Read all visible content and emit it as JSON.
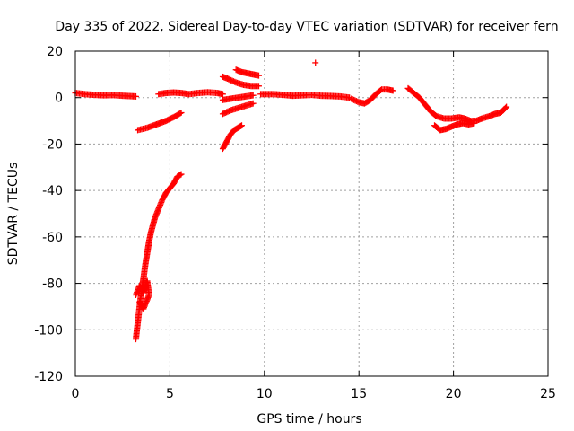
{
  "chart_data": {
    "type": "scatter",
    "title": "Day 335 of 2022, Sidereal Day-to-day VTEC variation (SDTVAR) for receiver fern",
    "xlabel": "GPS time / hours",
    "ylabel": "SDTVAR / TECUs",
    "xlim": [
      0,
      25
    ],
    "ylim": [
      -120,
      20
    ],
    "x_ticks": [
      0,
      5,
      10,
      15,
      20,
      25
    ],
    "y_ticks": [
      -120,
      -100,
      -80,
      -60,
      -40,
      -20,
      0,
      20
    ],
    "grid": true,
    "marker": "+",
    "color": "#ff0000",
    "series": [
      {
        "segments": [
          [
            [
              0.0,
              2
            ],
            [
              0.5,
              1.5
            ],
            [
              1.0,
              1.2
            ],
            [
              1.5,
              1.0
            ],
            [
              2.0,
              1.1
            ],
            [
              2.5,
              0.8
            ],
            [
              3.0,
              0.6
            ],
            [
              3.2,
              0.5
            ]
          ],
          [
            [
              3.3,
              -14
            ],
            [
              3.8,
              -13
            ],
            [
              4.3,
              -11.5
            ],
            [
              4.8,
              -10
            ],
            [
              5.3,
              -8
            ],
            [
              5.6,
              -6.5
            ]
          ],
          [
            [
              3.2,
              -104
            ],
            [
              3.3,
              -97
            ],
            [
              3.4,
              -90
            ],
            [
              3.5,
              -83
            ],
            [
              3.6,
              -78
            ],
            [
              3.7,
              -72
            ],
            [
              3.8,
              -67
            ],
            [
              3.9,
              -62
            ],
            [
              4.0,
              -58
            ],
            [
              4.2,
              -52
            ],
            [
              4.4,
              -48
            ],
            [
              4.6,
              -44
            ],
            [
              4.8,
              -41
            ],
            [
              5.0,
              -39
            ],
            [
              5.2,
              -37
            ],
            [
              5.4,
              -34
            ],
            [
              5.6,
              -33
            ]
          ],
          [
            [
              3.2,
              -85
            ],
            [
              3.4,
              -81
            ],
            [
              3.6,
              -84
            ],
            [
              3.8,
              -79
            ],
            [
              3.9,
              -85
            ],
            [
              3.6,
              -91
            ],
            [
              3.4,
              -88
            ]
          ],
          [
            [
              4.4,
              1.5
            ],
            [
              4.8,
              2.0
            ],
            [
              5.2,
              2.2
            ],
            [
              5.6,
              2.0
            ],
            [
              6.0,
              1.5
            ],
            [
              6.5,
              2.0
            ],
            [
              7.0,
              2.3
            ],
            [
              7.5,
              2.0
            ],
            [
              7.8,
              1.5
            ]
          ],
          [
            [
              7.8,
              9
            ],
            [
              8.1,
              8
            ],
            [
              8.5,
              6.5
            ],
            [
              8.9,
              5.5
            ],
            [
              9.3,
              5.0
            ],
            [
              9.7,
              5.0
            ]
          ],
          [
            [
              8.5,
              12
            ],
            [
              8.8,
              11
            ],
            [
              9.1,
              10.5
            ],
            [
              9.4,
              10
            ],
            [
              9.7,
              9.5
            ]
          ],
          [
            [
              7.8,
              -1
            ],
            [
              8.2,
              -0.5
            ],
            [
              8.6,
              0
            ],
            [
              9.0,
              0.5
            ],
            [
              9.4,
              1.0
            ]
          ],
          [
            [
              7.8,
              -7
            ],
            [
              8.2,
              -5.5
            ],
            [
              8.6,
              -4.5
            ],
            [
              9.0,
              -3.5
            ],
            [
              9.4,
              -2.5
            ]
          ],
          [
            [
              7.8,
              -22
            ],
            [
              8.0,
              -19
            ],
            [
              8.2,
              -16
            ],
            [
              8.4,
              -14
            ],
            [
              8.6,
              -13
            ],
            [
              8.8,
              -12
            ]
          ],
          [
            [
              9.8,
              1.5
            ],
            [
              10.5,
              1.5
            ],
            [
              11.0,
              1.2
            ],
            [
              11.5,
              0.8
            ],
            [
              12.0,
              1.0
            ],
            [
              12.5,
              1.2
            ],
            [
              13.0,
              0.8
            ],
            [
              13.5,
              0.7
            ],
            [
              14.0,
              0.5
            ],
            [
              14.5,
              0.0
            ]
          ],
          [
            [
              14.6,
              -0.5
            ],
            [
              15.0,
              -2
            ],
            [
              15.3,
              -2.5
            ],
            [
              15.6,
              -1
            ],
            [
              15.9,
              1.5
            ],
            [
              16.2,
              3.5
            ],
            [
              16.5,
              3.5
            ],
            [
              16.8,
              3.0
            ]
          ],
          [
            [
              12.7,
              15
            ]
          ],
          [
            [
              17.6,
              4
            ],
            [
              17.9,
              2
            ],
            [
              18.2,
              0
            ],
            [
              18.5,
              -3
            ],
            [
              18.8,
              -6
            ],
            [
              19.1,
              -8
            ],
            [
              19.5,
              -9
            ],
            [
              19.9,
              -9
            ],
            [
              20.3,
              -8.5
            ],
            [
              20.6,
              -9
            ],
            [
              20.9,
              -10
            ],
            [
              21.2,
              -10
            ],
            [
              21.5,
              -9
            ]
          ],
          [
            [
              19.0,
              -12
            ],
            [
              19.3,
              -14
            ],
            [
              19.6,
              -13.5
            ],
            [
              19.9,
              -12.5
            ],
            [
              20.2,
              -11.5
            ],
            [
              20.5,
              -11
            ],
            [
              20.8,
              -11.5
            ],
            [
              21.1,
              -11
            ]
          ],
          [
            [
              21.5,
              -9
            ],
            [
              21.9,
              -8
            ],
            [
              22.2,
              -7
            ],
            [
              22.5,
              -6.5
            ],
            [
              22.8,
              -4
            ]
          ]
        ]
      }
    ]
  }
}
